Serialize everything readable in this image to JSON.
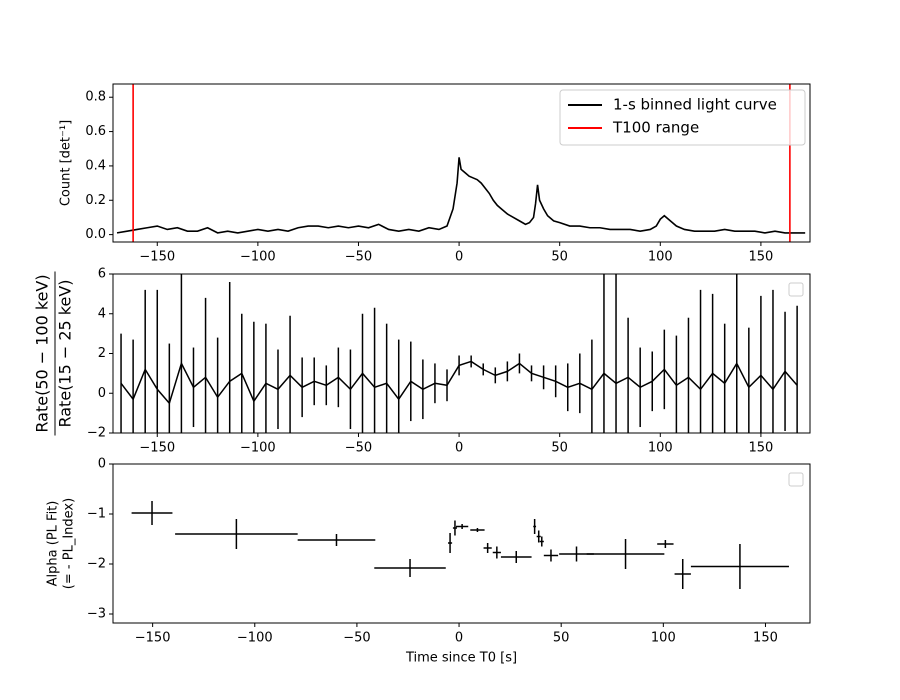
{
  "chart_data": [
    {
      "type": "line",
      "ylabel": "Count [det⁻¹]",
      "xlim": [
        -172,
        174.4
      ],
      "ylim": [
        -0.043,
        0.877
      ],
      "xticks": [
        {
          "value": -150,
          "label": "−150"
        },
        {
          "value": -100,
          "label": "−100"
        },
        {
          "value": -50,
          "label": "−50"
        },
        0,
        50,
        100,
        150
      ],
      "yticks": [
        {
          "value": 0,
          "label": "0.0"
        },
        0.2,
        0.4,
        0.6,
        0.8
      ],
      "legend": "upper right",
      "series": [
        {
          "name": "1-s binned light curve",
          "color": "#000000",
          "x": [
            -170,
            -165,
            -160,
            -155,
            -150,
            -145,
            -140,
            -135,
            -130,
            -125,
            -120,
            -115,
            -110,
            -105,
            -100,
            -95,
            -90,
            -85,
            -80,
            -75,
            -70,
            -65,
            -60,
            -55,
            -50,
            -45,
            -40,
            -35,
            -30,
            -25,
            -20,
            -15,
            -10,
            -6,
            -3,
            -1,
            0,
            1,
            3,
            5,
            7,
            9,
            11,
            13,
            15,
            17,
            19,
            21,
            24,
            27,
            30,
            33,
            35,
            37,
            38,
            39,
            40,
            42,
            44,
            47,
            50,
            55,
            60,
            65,
            70,
            75,
            80,
            85,
            90,
            95,
            98,
            100,
            102,
            105,
            108,
            112,
            117,
            122,
            127,
            132,
            137,
            142,
            147,
            152,
            157,
            162,
            167,
            172
          ],
          "values": [
            0.01,
            0.02,
            0.03,
            0.04,
            0.05,
            0.03,
            0.04,
            0.02,
            0.02,
            0.04,
            0.01,
            0.02,
            0.01,
            0.02,
            0.03,
            0.02,
            0.03,
            0.02,
            0.04,
            0.05,
            0.05,
            0.04,
            0.05,
            0.04,
            0.05,
            0.04,
            0.06,
            0.03,
            0.02,
            0.03,
            0.02,
            0.04,
            0.03,
            0.05,
            0.15,
            0.3,
            0.45,
            0.38,
            0.36,
            0.34,
            0.33,
            0.32,
            0.3,
            0.27,
            0.24,
            0.2,
            0.17,
            0.15,
            0.12,
            0.1,
            0.08,
            0.06,
            0.07,
            0.1,
            0.18,
            0.29,
            0.2,
            0.15,
            0.11,
            0.08,
            0.07,
            0.05,
            0.05,
            0.04,
            0.04,
            0.03,
            0.03,
            0.03,
            0.02,
            0.03,
            0.05,
            0.09,
            0.11,
            0.08,
            0.05,
            0.03,
            0.02,
            0.02,
            0.02,
            0.03,
            0.02,
            0.02,
            0.02,
            0.01,
            0.02,
            0.01,
            0.01,
            0.01
          ]
        },
        {
          "name": "T100 range",
          "color": "#ff0000",
          "x": [
            -162,
            164.4
          ]
        }
      ]
    },
    {
      "type": "errorbar",
      "ylabel": [
        "Rate(50 − 100 keV)",
        "Rate(15 − 25 keV)"
      ],
      "xlim": [
        -172,
        174.4
      ],
      "ylim": [
        -2,
        6
      ],
      "xticks": [
        {
          "value": -150,
          "label": "−150"
        },
        {
          "value": -100,
          "label": "−100"
        },
        {
          "value": -50,
          "label": "−50"
        },
        0,
        50,
        100,
        150
      ],
      "yticks": [
        {
          "value": -2,
          "label": "−2"
        },
        0,
        2,
        4,
        6
      ],
      "color": "#000000",
      "x": [
        -168,
        -162,
        -156,
        -150,
        -144,
        -138,
        -132,
        -126,
        -120,
        -114,
        -108,
        -102,
        -96,
        -90,
        -84,
        -78,
        -72,
        -66,
        -60,
        -54,
        -48,
        -42,
        -36,
        -30,
        -24,
        -18,
        -12,
        -6,
        0,
        6,
        12,
        18,
        24,
        30,
        36,
        42,
        48,
        54,
        60,
        66,
        72,
        78,
        84,
        90,
        96,
        102,
        108,
        114,
        120,
        126,
        132,
        138,
        144,
        150,
        156,
        162,
        168
      ],
      "values": [
        0.5,
        -0.3,
        1.2,
        0.2,
        -0.5,
        1.5,
        0.3,
        0.8,
        -0.2,
        0.6,
        1.0,
        -0.4,
        0.5,
        0.2,
        0.9,
        0.3,
        0.6,
        0.4,
        0.8,
        0.2,
        1.0,
        0.3,
        0.5,
        -0.3,
        0.6,
        0.2,
        0.5,
        0.4,
        1.4,
        1.6,
        1.2,
        0.9,
        1.1,
        1.5,
        1.0,
        0.8,
        0.6,
        0.3,
        0.5,
        0.2,
        1.0,
        0.5,
        0.8,
        0.3,
        0.6,
        1.2,
        0.4,
        0.8,
        0.2,
        1.0,
        0.5,
        1.5,
        0.3,
        0.9,
        0.2,
        1.1,
        0.4
      ],
      "errors": [
        2.5,
        3,
        4,
        5,
        3,
        6,
        2,
        4,
        3,
        5,
        3,
        4,
        3,
        2,
        3,
        1.5,
        1.2,
        1,
        1.5,
        2,
        3,
        4,
        3,
        3,
        2,
        1.5,
        1,
        0.8,
        0.5,
        0.3,
        0.3,
        0.4,
        0.5,
        0.5,
        0.4,
        0.6,
        0.8,
        1.2,
        1.5,
        2.5,
        5,
        6,
        3,
        2,
        1.5,
        2,
        2.5,
        3,
        5,
        4,
        3,
        5,
        3,
        4,
        5,
        3,
        4
      ]
    },
    {
      "type": "errorbar",
      "ylabel": [
        "Alpha (PL Fit)",
        "(= - PL_Index)"
      ],
      "xlabel": "Time since T0 [s]",
      "xlim": [
        -169.4,
        171.8
      ],
      "ylim": [
        -3.18,
        0
      ],
      "xticks": [
        {
          "value": -150,
          "label": "−150"
        },
        {
          "value": -100,
          "label": "−100"
        },
        {
          "value": -50,
          "label": "−50"
        },
        0,
        50,
        100,
        150
      ],
      "yticks": [
        {
          "value": -3,
          "label": "−3"
        },
        {
          "value": -2,
          "label": "−2"
        },
        {
          "value": -1,
          "label": "−1"
        },
        0
      ],
      "color": "#000000",
      "x": [
        -150.3,
        -109,
        -60,
        -24,
        -4.4,
        -2,
        1.5,
        9,
        14,
        18.5,
        28,
        37,
        39,
        40.5,
        45,
        57.5,
        81.5,
        101,
        109.5,
        137.5
      ],
      "xerr": [
        10,
        30,
        19,
        17.5,
        1,
        1,
        3,
        3.5,
        2,
        2,
        7.5,
        0.7,
        1,
        1,
        3.5,
        8.5,
        19,
        4,
        4,
        24
      ],
      "values": [
        -0.98,
        -1.4,
        -1.52,
        -2.08,
        -1.58,
        -1.28,
        -1.25,
        -1.32,
        -1.68,
        -1.77,
        -1.86,
        -1.25,
        -1.45,
        -1.55,
        -1.83,
        -1.8,
        -1.8,
        -1.6,
        -2.2,
        -2.05
      ],
      "errors": [
        0.24,
        0.3,
        0.12,
        0.18,
        0.2,
        0.15,
        0.05,
        0.04,
        0.1,
        0.12,
        0.12,
        0.15,
        0.12,
        0.1,
        0.12,
        0.15,
        0.3,
        0.08,
        0.3,
        0.45
      ]
    }
  ]
}
